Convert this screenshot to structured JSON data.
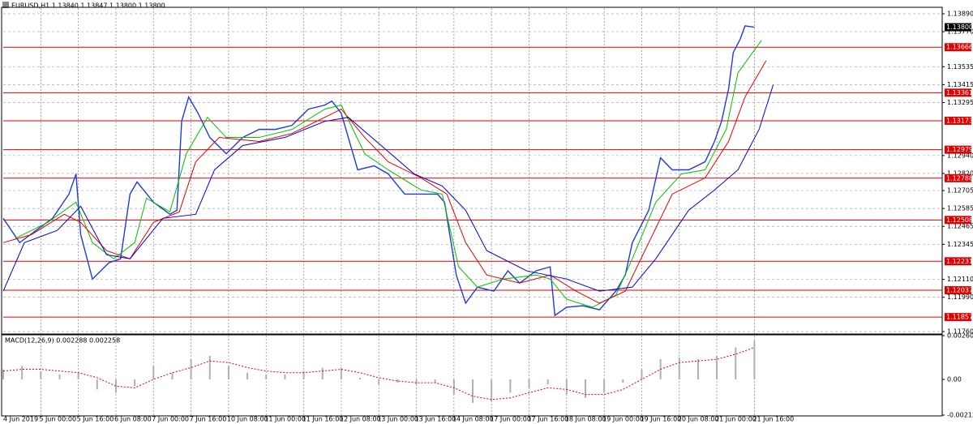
{
  "chart_data": [
    {
      "type": "line",
      "title": "EURUSD,H1  1.13840 1.13847 1.13800 1.13800",
      "xlim": [
        0,
        400
      ],
      "ylim": [
        1.11749,
        1.13928
      ],
      "grid": true,
      "xticks": [
        {
          "value": 0,
          "label": "4 Jun 2019"
        },
        {
          "value": 16,
          "label": "5 Jun 00:00"
        },
        {
          "value": 32,
          "label": "5 Jun 16:00"
        },
        {
          "value": 48,
          "label": "6 Jun 08:00"
        },
        {
          "value": 64,
          "label": "7 Jun 00:00"
        },
        {
          "value": 80,
          "label": "7 Jun 16:00"
        },
        {
          "value": 96,
          "label": "10 Jun 08:00"
        },
        {
          "value": 112,
          "label": "11 Jun 00:00"
        },
        {
          "value": 128,
          "label": "11 Jun 16:00"
        },
        {
          "value": 144,
          "label": "12 Jun 08:00"
        },
        {
          "value": 160,
          "label": "13 Jun 00:00"
        },
        {
          "value": 176,
          "label": "13 Jun 16:00"
        },
        {
          "value": 192,
          "label": "14 Jun 08:00"
        },
        {
          "value": 208,
          "label": "17 Jun 00:00"
        },
        {
          "value": 224,
          "label": "17 Jun 16:00"
        },
        {
          "value": 240,
          "label": "18 Jun 08:00"
        },
        {
          "value": 256,
          "label": "19 Jun 00:00"
        },
        {
          "value": 272,
          "label": "19 Jun 16:00"
        },
        {
          "value": 288,
          "label": "20 Jun 08:00"
        },
        {
          "value": 304,
          "label": "21 Jun 00:00"
        },
        {
          "value": 320,
          "label": "21 Jun 16:00"
        }
      ],
      "yticks": [
        {
          "value": 1.1389,
          "label": "1.13890"
        },
        {
          "value": 1.1377,
          "label": "1.13770"
        },
        {
          "value": 1.13535,
          "label": "1.13535"
        },
        {
          "value": 1.13415,
          "label": "1.13415"
        },
        {
          "value": 1.13295,
          "label": "1.13295"
        },
        {
          "value": 1.1294,
          "label": "1.12940"
        },
        {
          "value": 1.1282,
          "label": "1.12820"
        },
        {
          "value": 1.12705,
          "label": "1.12705"
        },
        {
          "value": 1.12585,
          "label": "1.12585"
        },
        {
          "value": 1.12465,
          "label": "1.12465"
        },
        {
          "value": 1.12345,
          "label": "1.12345"
        },
        {
          "value": 1.1211,
          "label": "1.12110"
        },
        {
          "value": 1.1199,
          "label": "1.11990"
        },
        {
          "value": 1.1176,
          "label": "1.11760"
        }
      ],
      "levels": [
        1.13666,
        1.13361,
        1.13173,
        1.12979,
        1.12788,
        1.12508,
        1.12231,
        1.12037,
        1.11857
      ],
      "level_color": "#e00000",
      "current": {
        "value": 1.138,
        "label": "1.13800"
      },
      "series": [
        {
          "color": "#1e3cd7",
          "x": [
            0,
            7,
            14,
            21,
            28,
            31,
            33,
            38,
            45,
            50,
            54,
            57,
            64,
            71,
            74,
            76,
            79,
            83,
            88,
            95,
            102,
            109,
            116,
            123,
            130,
            137,
            140,
            144,
            151,
            158,
            164,
            171,
            178,
            185,
            188,
            193,
            197,
            202,
            209,
            215,
            220,
            227,
            233,
            235,
            240,
            247,
            254,
            261,
            265,
            268,
            275,
            280,
            285,
            292,
            299,
            303,
            306,
            309,
            311,
            314,
            316,
            320
          ],
          "values": [
            1.12519,
            1.12356,
            1.12438,
            1.12519,
            1.12681,
            1.12817,
            1.1241,
            1.12112,
            1.12221,
            1.12248,
            1.12681,
            1.12763,
            1.12627,
            1.12546,
            1.12573,
            1.13169,
            1.13332,
            1.13223,
            1.13061,
            1.12952,
            1.13061,
            1.13115,
            1.13115,
            1.13142,
            1.13251,
            1.13278,
            1.13305,
            1.13223,
            1.12844,
            1.12871,
            1.12817,
            1.12681,
            1.12681,
            1.12681,
            1.12627,
            1.12139,
            1.1195,
            1.12058,
            1.12031,
            1.12167,
            1.12085,
            1.12167,
            1.12194,
            1.11868,
            1.11923,
            1.11933,
            1.11906,
            1.12031,
            1.12139,
            1.12356,
            1.12573,
            1.12925,
            1.12844,
            1.12844,
            1.12898,
            1.13034,
            1.13169,
            1.13386,
            1.1363,
            1.13722,
            1.13809,
            1.138
          ]
        },
        {
          "color": "#00c000",
          "x": [
            5,
            19,
            31,
            38,
            47,
            56,
            61,
            71,
            78,
            87,
            95,
            109,
            123,
            137,
            144,
            154,
            164,
            178,
            187,
            194,
            202,
            213,
            227,
            233,
            240,
            251,
            261,
            268,
            278,
            289,
            299,
            308,
            313,
            323
          ],
          "values": [
            1.12383,
            1.12492,
            1.12627,
            1.12356,
            1.12248,
            1.12356,
            1.12654,
            1.12562,
            1.12952,
            1.13196,
            1.13061,
            1.13061,
            1.13115,
            1.13251,
            1.13278,
            1.12952,
            1.12844,
            1.12709,
            1.12681,
            1.12194,
            1.12058,
            1.12112,
            1.12139,
            1.12112,
            1.11977,
            1.11923,
            1.12004,
            1.12248,
            1.12627,
            1.12817,
            1.12844,
            1.13115,
            1.13494,
            1.13711
          ]
        },
        {
          "color": "#e00000",
          "x": [
            0,
            12,
            26,
            33,
            44,
            54,
            64,
            75,
            82,
            92,
            109,
            123,
            137,
            144,
            154,
            164,
            178,
            189,
            197,
            206,
            220,
            233,
            244,
            254,
            265,
            275,
            285,
            299,
            309,
            316,
            325
          ],
          "values": [
            1.12356,
            1.1241,
            1.12546,
            1.12492,
            1.12302,
            1.12248,
            1.12492,
            1.12562,
            1.12898,
            1.13061,
            1.13034,
            1.13088,
            1.13196,
            1.13251,
            1.13061,
            1.12898,
            1.1279,
            1.12681,
            1.12356,
            1.12139,
            1.12085,
            1.12139,
            1.12031,
            1.1195,
            1.12031,
            1.12356,
            1.12681,
            1.1279,
            1.13034,
            1.13332,
            1.13576
          ]
        },
        {
          "color": "#0000cc",
          "x": [
            0,
            9,
            23,
            33,
            44,
            54,
            68,
            82,
            90,
            102,
            120,
            137,
            147,
            161,
            175,
            187,
            197,
            206,
            223,
            240,
            254,
            268,
            278,
            292,
            303,
            313,
            322,
            328
          ],
          "values": [
            1.12031,
            1.12356,
            1.12438,
            1.126,
            1.12275,
            1.12248,
            1.12519,
            1.12546,
            1.12844,
            1.13007,
            1.13061,
            1.13169,
            1.13196,
            1.13007,
            1.12817,
            1.12736,
            1.12573,
            1.12302,
            1.12167,
            1.12112,
            1.12031,
            1.12058,
            1.12248,
            1.12573,
            1.12709,
            1.12844,
            1.13115,
            1.13413
          ]
        }
      ]
    },
    {
      "type": "macd",
      "title": "MACD(12,26,9) 0.002288 0.002258",
      "xlim": [
        0,
        400
      ],
      "ylim": [
        -0.002125,
        0.002606
      ],
      "yticks": [
        0.002606,
        {
          "value": 0,
          "label": "0.00"
        },
        -0.002125
      ],
      "x": [
        0,
        8,
        16,
        24,
        32,
        40,
        48,
        56,
        64,
        72,
        80,
        88,
        96,
        104,
        112,
        120,
        128,
        136,
        144,
        152,
        160,
        168,
        176,
        184,
        192,
        200,
        208,
        216,
        224,
        232,
        240,
        248,
        256,
        264,
        272,
        280,
        288,
        296,
        304,
        312,
        320
      ],
      "series": [
        {
          "kind": "bar",
          "color": "#b0b0b0",
          "values": [
            0.0006,
            0.0008,
            0.0005,
            0.0003,
            0.0004,
            -0.0006,
            -0.0008,
            -0.0004,
            0.0008,
            0.0004,
            0.0012,
            0.0014,
            0.0008,
            0.0004,
            0.0003,
            0.0003,
            0.0005,
            0.0007,
            0.0007,
            0.0001,
            -0.0003,
            -0.0002,
            -0.0003,
            -0.0002,
            -0.0009,
            -0.0014,
            -0.0013,
            -0.0008,
            -0.0005,
            -0.0003,
            -0.0009,
            -0.0011,
            -0.0008,
            -0.0002,
            0.0006,
            0.0012,
            0.0013,
            0.0012,
            0.0014,
            0.0019,
            0.0023
          ]
        },
        {
          "kind": "line",
          "color": "#e00000",
          "values": [
            0.0005,
            0.0006,
            0.0006,
            0.0005,
            0.0004,
            0.0001,
            -0.0004,
            -0.0005,
            0,
            0.0004,
            0.0007,
            0.0011,
            0.001,
            0.0007,
            0.0005,
            0.0004,
            0.0004,
            0.0005,
            0.0006,
            0.0004,
            0.0001,
            -0.0001,
            -0.0002,
            -0.0002,
            -0.0005,
            -0.001,
            -0.0012,
            -0.0011,
            -0.0008,
            -0.0005,
            -0.0006,
            -0.0009,
            -0.0009,
            -0.0006,
            0,
            0.0006,
            0.001,
            0.0011,
            0.0012,
            0.0015,
            0.0019
          ]
        }
      ]
    }
  ]
}
